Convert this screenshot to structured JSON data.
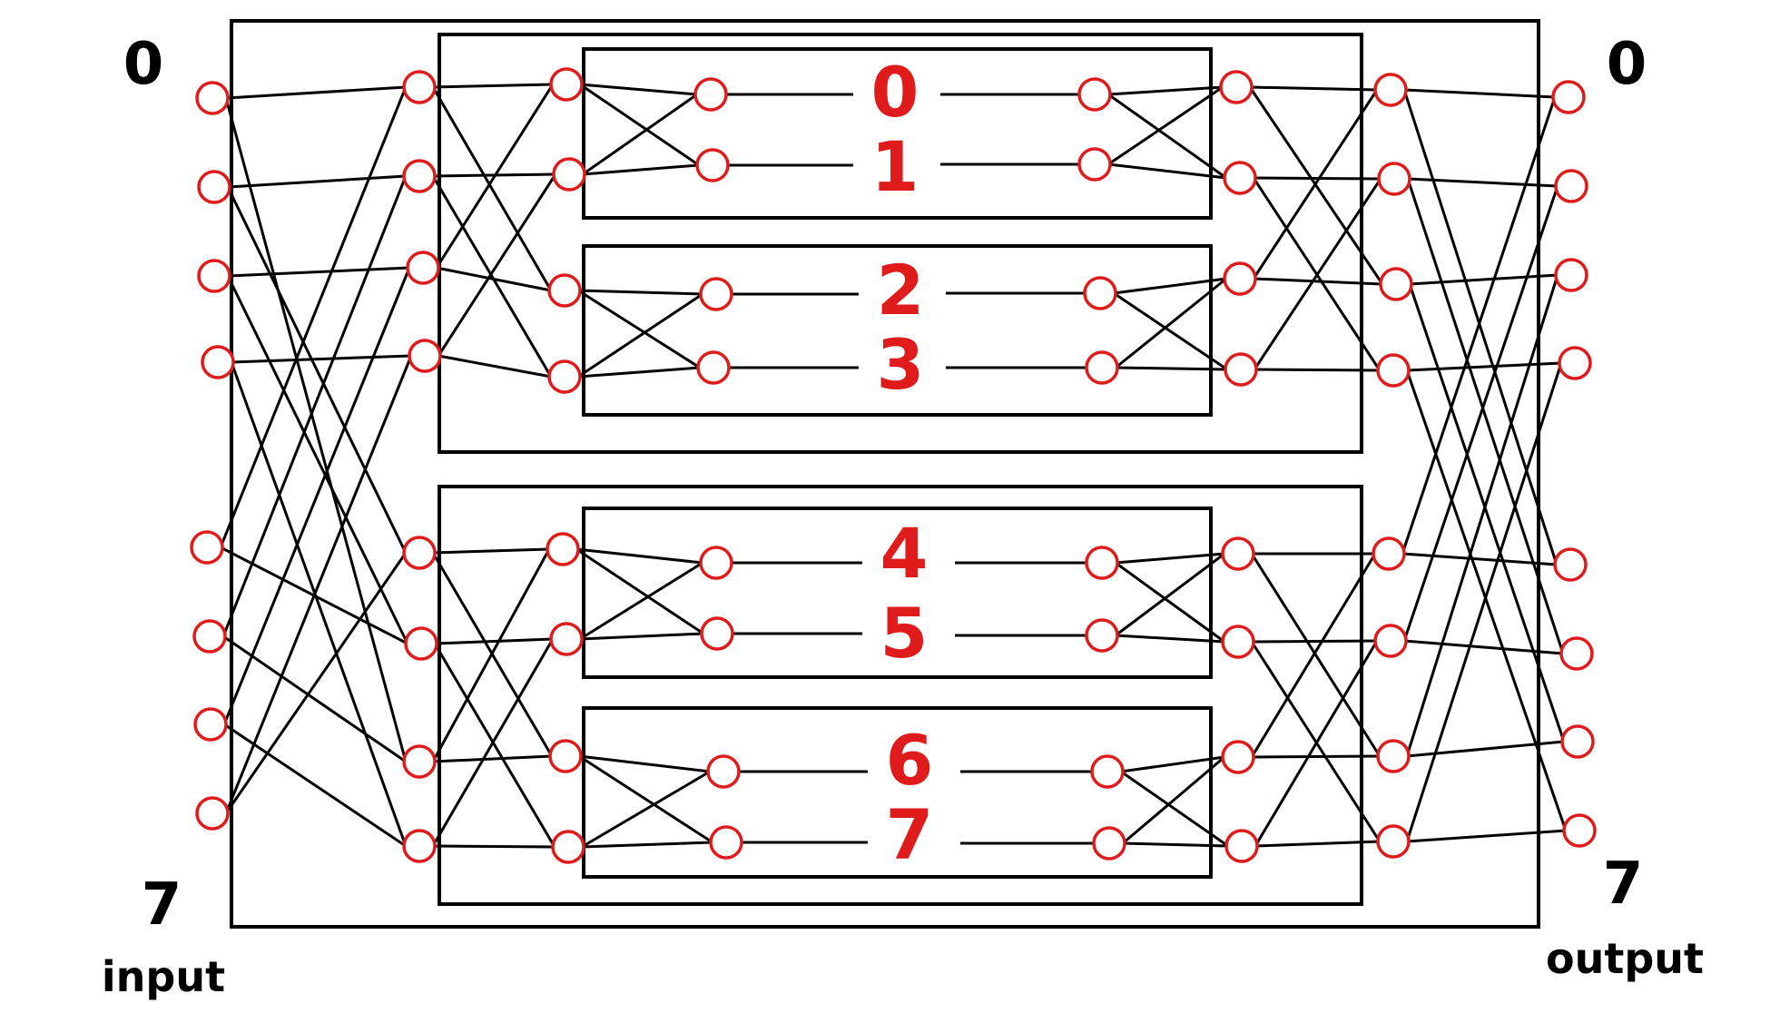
{
  "labels": {
    "input_top": "0",
    "input_bottom": "7",
    "input_caption": "input",
    "output_top": "0",
    "output_bottom": "7",
    "output_caption": "output"
  },
  "switches": [
    "0",
    "1",
    "2",
    "3",
    "4",
    "5",
    "6",
    "7"
  ],
  "colors": {
    "node": "#e01b1b",
    "switch_label": "#e01b1b",
    "wire": "#000000",
    "path_a": "#1faa2e",
    "path_b": "#9b4fb0"
  }
}
